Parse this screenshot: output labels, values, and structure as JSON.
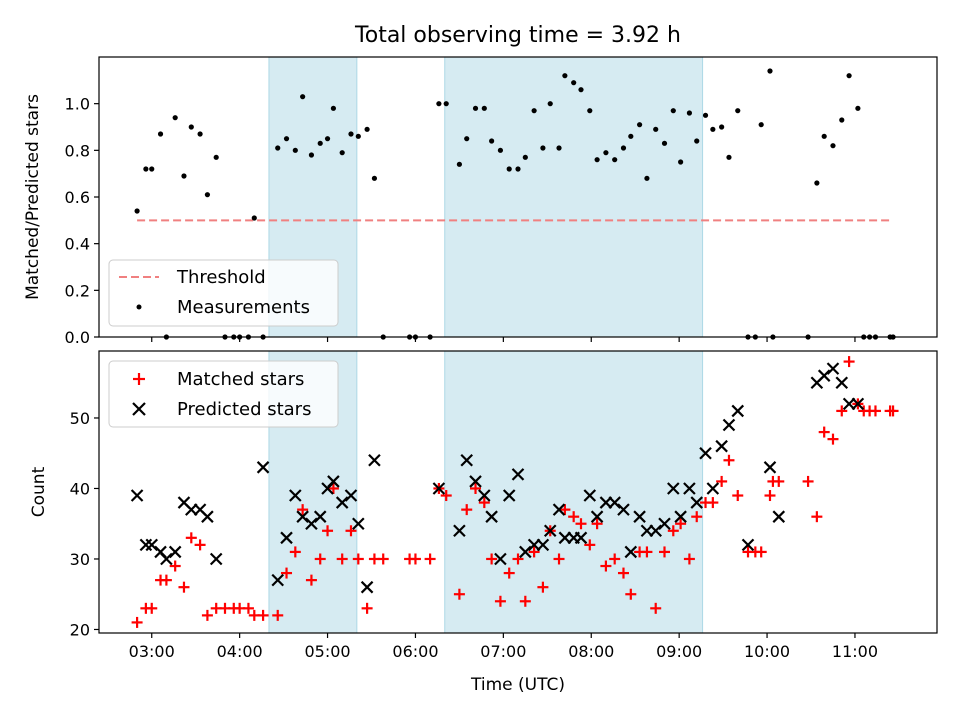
{
  "chart_data": [
    {
      "type": "scatter",
      "title": "Total observing time = 3.92 h",
      "ylabel": "Matched/Predicted stars",
      "xlabel": "",
      "xlim": [
        "02:24",
        "11:56"
      ],
      "ylim": [
        0,
        1.2
      ],
      "yticks": [
        "0.0",
        "0.2",
        "0.4",
        "0.6",
        "0.8",
        "1.0"
      ],
      "shaded_intervals": [
        [
          "04:20",
          "05:20"
        ],
        [
          "06:20",
          "09:16"
        ]
      ],
      "legend": "lower-left",
      "series": [
        {
          "name": "Threshold",
          "style": "dashed-line",
          "color": "#f08080",
          "points": [
            [
              "02:50",
              0.5
            ],
            [
              "11:25",
              0.5
            ]
          ]
        },
        {
          "name": "Measurements",
          "style": "dot",
          "color": "#000000",
          "points": [
            [
              "02:50",
              0.54
            ],
            [
              "02:56",
              0.72
            ],
            [
              "03:00",
              0.72
            ],
            [
              "03:06",
              0.87
            ],
            [
              "03:10",
              0.0
            ],
            [
              "03:16",
              0.94
            ],
            [
              "03:22",
              0.69
            ],
            [
              "03:27",
              0.9
            ],
            [
              "03:33",
              0.87
            ],
            [
              "03:38",
              0.61
            ],
            [
              "03:44",
              0.77
            ],
            [
              "03:50",
              0.0
            ],
            [
              "03:56",
              0.0
            ],
            [
              "04:00",
              0.0
            ],
            [
              "04:06",
              0.0
            ],
            [
              "04:10",
              0.51
            ],
            [
              "04:16",
              0.0
            ],
            [
              "04:26",
              0.81
            ],
            [
              "04:32",
              0.85
            ],
            [
              "04:38",
              0.8
            ],
            [
              "04:43",
              1.03
            ],
            [
              "04:49",
              0.78
            ],
            [
              "04:55",
              0.83
            ],
            [
              "05:00",
              0.85
            ],
            [
              "05:04",
              0.98
            ],
            [
              "05:10",
              0.79
            ],
            [
              "05:16",
              0.87
            ],
            [
              "05:21",
              0.86
            ],
            [
              "05:27",
              0.89
            ],
            [
              "05:32",
              0.68
            ],
            [
              "05:38",
              0.0
            ],
            [
              "05:56",
              0.0
            ],
            [
              "06:00",
              0.0
            ],
            [
              "06:10",
              0.0
            ],
            [
              "06:16",
              1.0
            ],
            [
              "06:21",
              1.0
            ],
            [
              "06:30",
              0.74
            ],
            [
              "06:35",
              0.85
            ],
            [
              "06:41",
              0.98
            ],
            [
              "06:47",
              0.98
            ],
            [
              "06:52",
              0.84
            ],
            [
              "06:58",
              0.8
            ],
            [
              "07:04",
              0.72
            ],
            [
              "07:10",
              0.72
            ],
            [
              "07:15",
              0.77
            ],
            [
              "07:21",
              0.97
            ],
            [
              "07:27",
              0.81
            ],
            [
              "07:32",
              1.0
            ],
            [
              "07:38",
              0.81
            ],
            [
              "07:42",
              1.12
            ],
            [
              "07:48",
              1.09
            ],
            [
              "07:53",
              1.06
            ],
            [
              "07:59",
              0.97
            ],
            [
              "08:04",
              0.76
            ],
            [
              "08:10",
              0.79
            ],
            [
              "08:16",
              0.76
            ],
            [
              "08:22",
              0.81
            ],
            [
              "08:27",
              0.86
            ],
            [
              "08:33",
              0.91
            ],
            [
              "08:38",
              0.68
            ],
            [
              "08:44",
              0.89
            ],
            [
              "08:50",
              0.83
            ],
            [
              "08:56",
              0.97
            ],
            [
              "09:01",
              0.75
            ],
            [
              "09:07",
              0.96
            ],
            [
              "09:12",
              0.84
            ],
            [
              "09:18",
              0.95
            ],
            [
              "09:23",
              0.89
            ],
            [
              "09:29",
              0.9
            ],
            [
              "09:34",
              0.77
            ],
            [
              "09:40",
              0.97
            ],
            [
              "09:47",
              0.0
            ],
            [
              "09:52",
              0.0
            ],
            [
              "09:56",
              0.91
            ],
            [
              "10:02",
              1.14
            ],
            [
              "10:04",
              0.0
            ],
            [
              "10:28",
              0.0
            ],
            [
              "10:34",
              0.66
            ],
            [
              "10:39",
              0.86
            ],
            [
              "10:45",
              0.82
            ],
            [
              "10:51",
              0.93
            ],
            [
              "10:56",
              1.12
            ],
            [
              "11:02",
              0.98
            ],
            [
              "11:06",
              0.0
            ],
            [
              "11:10",
              0.0
            ],
            [
              "11:14",
              0.0
            ],
            [
              "11:24",
              0.0
            ],
            [
              "11:26",
              0.0
            ]
          ]
        }
      ]
    },
    {
      "type": "scatter",
      "title": "",
      "ylabel": "Count",
      "xlabel": "Time (UTC)",
      "xlim": [
        "02:24",
        "11:56"
      ],
      "ylim": [
        19.5,
        59.5
      ],
      "yticks": [
        "20",
        "30",
        "40",
        "50"
      ],
      "xticks": [
        "03:00",
        "04:00",
        "05:00",
        "06:00",
        "07:00",
        "08:00",
        "09:00",
        "10:00",
        "11:00"
      ],
      "shaded_intervals": [
        [
          "04:20",
          "05:20"
        ],
        [
          "06:20",
          "09:16"
        ]
      ],
      "legend": "top-left",
      "series": [
        {
          "name": "Matched stars",
          "style": "plus",
          "color": "#ff0000",
          "points": [
            [
              "02:50",
              21
            ],
            [
              "02:56",
              23
            ],
            [
              "03:00",
              23
            ],
            [
              "03:06",
              27
            ],
            [
              "03:10",
              27
            ],
            [
              "03:16",
              29
            ],
            [
              "03:22",
              26
            ],
            [
              "03:27",
              33
            ],
            [
              "03:33",
              32
            ],
            [
              "03:38",
              22
            ],
            [
              "03:44",
              23
            ],
            [
              "03:50",
              23
            ],
            [
              "03:56",
              23
            ],
            [
              "04:00",
              23
            ],
            [
              "04:06",
              23
            ],
            [
              "04:10",
              22
            ],
            [
              "04:16",
              22
            ],
            [
              "04:26",
              22
            ],
            [
              "04:32",
              28
            ],
            [
              "04:38",
              31
            ],
            [
              "04:43",
              37
            ],
            [
              "04:49",
              27
            ],
            [
              "04:55",
              30
            ],
            [
              "05:00",
              34
            ],
            [
              "05:04",
              40
            ],
            [
              "05:10",
              30
            ],
            [
              "05:16",
              34
            ],
            [
              "05:21",
              30
            ],
            [
              "05:27",
              23
            ],
            [
              "05:32",
              30
            ],
            [
              "05:38",
              30
            ],
            [
              "05:56",
              30
            ],
            [
              "06:00",
              30
            ],
            [
              "06:10",
              30
            ],
            [
              "06:16",
              40
            ],
            [
              "06:21",
              39
            ],
            [
              "06:30",
              25
            ],
            [
              "06:35",
              37
            ],
            [
              "06:41",
              40
            ],
            [
              "06:47",
              38
            ],
            [
              "06:52",
              30
            ],
            [
              "06:58",
              24
            ],
            [
              "07:04",
              28
            ],
            [
              "07:10",
              30
            ],
            [
              "07:15",
              24
            ],
            [
              "07:21",
              31
            ],
            [
              "07:27",
              26
            ],
            [
              "07:32",
              34
            ],
            [
              "07:38",
              30
            ],
            [
              "07:42",
              37
            ],
            [
              "07:48",
              36
            ],
            [
              "07:53",
              35
            ],
            [
              "07:59",
              32
            ],
            [
              "08:04",
              35
            ],
            [
              "08:10",
              29
            ],
            [
              "08:16",
              30
            ],
            [
              "08:22",
              28
            ],
            [
              "08:27",
              25
            ],
            [
              "08:33",
              31
            ],
            [
              "08:38",
              31
            ],
            [
              "08:44",
              23
            ],
            [
              "08:50",
              31
            ],
            [
              "08:56",
              34
            ],
            [
              "09:01",
              35
            ],
            [
              "09:07",
              30
            ],
            [
              "09:12",
              36
            ],
            [
              "09:18",
              38
            ],
            [
              "09:23",
              38
            ],
            [
              "09:29",
              41
            ],
            [
              "09:34",
              44
            ],
            [
              "09:40",
              39
            ],
            [
              "09:47",
              31
            ],
            [
              "09:52",
              31
            ],
            [
              "09:56",
              31
            ],
            [
              "10:02",
              39
            ],
            [
              "10:04",
              41
            ],
            [
              "10:08",
              41
            ],
            [
              "10:28",
              41
            ],
            [
              "10:34",
              36
            ],
            [
              "10:39",
              48
            ],
            [
              "10:45",
              47
            ],
            [
              "10:51",
              51
            ],
            [
              "10:56",
              58
            ],
            [
              "11:02",
              52
            ],
            [
              "11:06",
              51
            ],
            [
              "11:10",
              51
            ],
            [
              "11:14",
              51
            ],
            [
              "11:24",
              51
            ],
            [
              "11:26",
              51
            ]
          ]
        },
        {
          "name": "Predicted stars",
          "style": "x",
          "color": "#000000",
          "points": [
            [
              "02:50",
              39
            ],
            [
              "02:56",
              32
            ],
            [
              "03:00",
              32
            ],
            [
              "03:06",
              31
            ],
            [
              "03:10",
              30
            ],
            [
              "03:16",
              31
            ],
            [
              "03:22",
              38
            ],
            [
              "03:27",
              37
            ],
            [
              "03:33",
              37
            ],
            [
              "03:38",
              36
            ],
            [
              "03:44",
              30
            ],
            [
              "04:16",
              43
            ],
            [
              "04:26",
              27
            ],
            [
              "04:32",
              33
            ],
            [
              "04:38",
              39
            ],
            [
              "04:43",
              36
            ],
            [
              "04:49",
              35
            ],
            [
              "04:55",
              36
            ],
            [
              "05:00",
              40
            ],
            [
              "05:04",
              41
            ],
            [
              "05:10",
              38
            ],
            [
              "05:16",
              39
            ],
            [
              "05:21",
              35
            ],
            [
              "05:27",
              26
            ],
            [
              "05:32",
              44
            ],
            [
              "06:16",
              40
            ],
            [
              "06:30",
              34
            ],
            [
              "06:35",
              44
            ],
            [
              "06:41",
              41
            ],
            [
              "06:47",
              39
            ],
            [
              "06:52",
              36
            ],
            [
              "06:58",
              30
            ],
            [
              "07:04",
              39
            ],
            [
              "07:10",
              42
            ],
            [
              "07:15",
              31
            ],
            [
              "07:21",
              32
            ],
            [
              "07:27",
              32
            ],
            [
              "07:32",
              34
            ],
            [
              "07:38",
              37
            ],
            [
              "07:42",
              33
            ],
            [
              "07:48",
              33
            ],
            [
              "07:53",
              33
            ],
            [
              "07:59",
              39
            ],
            [
              "08:04",
              36
            ],
            [
              "08:10",
              38
            ],
            [
              "08:16",
              38
            ],
            [
              "08:22",
              37
            ],
            [
              "08:27",
              31
            ],
            [
              "08:33",
              36
            ],
            [
              "08:38",
              34
            ],
            [
              "08:44",
              34
            ],
            [
              "08:50",
              35
            ],
            [
              "08:56",
              40
            ],
            [
              "09:01",
              36
            ],
            [
              "09:07",
              40
            ],
            [
              "09:12",
              38
            ],
            [
              "09:18",
              45
            ],
            [
              "09:23",
              40
            ],
            [
              "09:29",
              46
            ],
            [
              "09:34",
              49
            ],
            [
              "09:40",
              51
            ],
            [
              "09:47",
              32
            ],
            [
              "10:02",
              43
            ],
            [
              "10:08",
              36
            ],
            [
              "10:34",
              55
            ],
            [
              "10:39",
              56
            ],
            [
              "10:45",
              57
            ],
            [
              "10:51",
              55
            ],
            [
              "10:56",
              52
            ],
            [
              "11:02",
              52
            ]
          ]
        }
      ]
    }
  ]
}
